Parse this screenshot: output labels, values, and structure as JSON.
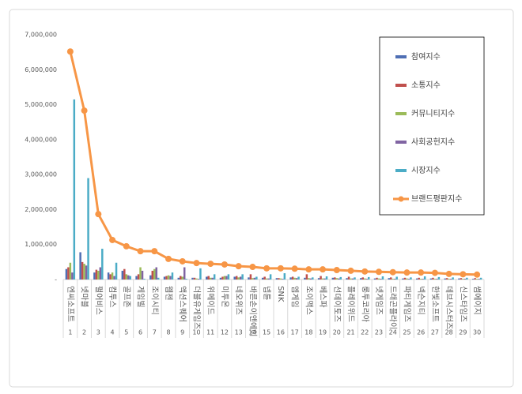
{
  "chart_data": {
    "type": "bar-line",
    "categories": [
      "엔씨소프트",
      "넷마블",
      "펄어비스",
      "컴투스",
      "골프존",
      "게임빌",
      "조이시티",
      "웹젠",
      "액션스퀘어",
      "더블유게임즈",
      "위메이드",
      "미투온",
      "네오위즈",
      "바른손이앤에이",
      "넵튠",
      "SNK",
      "엠게임",
      "조이맥스",
      "베스파",
      "선데이토즈",
      "플레이위드",
      "룽투코리아",
      "넷게임즈",
      "드래곤플라이",
      "파티게임즈",
      "넥슨지티",
      "한빛소프트",
      "데브시스터즈",
      "신스타임즈",
      "썸에이지"
    ],
    "category_numbers": [
      "1",
      "2",
      "3",
      "4",
      "5",
      "6",
      "7",
      "8",
      "9",
      "10",
      "11",
      "12",
      "13",
      "14",
      "15",
      "16",
      "17",
      "18",
      "19",
      "20",
      "21",
      "22",
      "23",
      "24",
      "25",
      "26",
      "27",
      "28",
      "29",
      "30"
    ],
    "ylim": [
      0,
      7000000
    ],
    "yticks": [
      {
        "value": 0,
        "label": "-"
      },
      {
        "value": 1000000,
        "label": "1,000,000"
      },
      {
        "value": 2000000,
        "label": "2,000,000"
      },
      {
        "value": 3000000,
        "label": "3,000,000"
      },
      {
        "value": 4000000,
        "label": "4,000,000"
      },
      {
        "value": 5000000,
        "label": "5,000,000"
      },
      {
        "value": 6000000,
        "label": "6,000,000"
      },
      {
        "value": 7000000,
        "label": "7,000,000"
      }
    ],
    "series": [
      {
        "name": "참여지수",
        "type": "bar",
        "color": "#4f6fb4",
        "values": [
          300000,
          780000,
          200000,
          200000,
          250000,
          100000,
          120000,
          80000,
          50000,
          50000,
          80000,
          50000,
          80000,
          60000,
          50000,
          40000,
          60000,
          50000,
          40000,
          50000,
          40000,
          40000,
          30000,
          40000,
          30000,
          30000,
          30000,
          30000,
          30000,
          20000
        ]
      },
      {
        "name": "소통지수",
        "type": "bar",
        "color": "#c0504d",
        "values": [
          350000,
          500000,
          280000,
          150000,
          300000,
          150000,
          250000,
          100000,
          100000,
          50000,
          100000,
          80000,
          100000,
          150000,
          80000,
          40000,
          80000,
          150000,
          100000,
          60000,
          80000,
          60000,
          50000,
          60000,
          50000,
          50000,
          50000,
          40000,
          40000,
          40000
        ]
      },
      {
        "name": "커뮤니티지수",
        "type": "bar",
        "color": "#9bbb59",
        "values": [
          480000,
          450000,
          250000,
          200000,
          150000,
          350000,
          300000,
          120000,
          80000,
          30000,
          50000,
          100000,
          60000,
          40000,
          30000,
          30000,
          50000,
          40000,
          30000,
          40000,
          30000,
          30000,
          30000,
          20000,
          30000,
          20000,
          20000,
          20000,
          20000,
          20000
        ]
      },
      {
        "name": "사회공헌지수",
        "type": "bar",
        "color": "#8064a2",
        "values": [
          200000,
          400000,
          350000,
          100000,
          120000,
          250000,
          350000,
          100000,
          350000,
          20000,
          50000,
          100000,
          80000,
          50000,
          30000,
          20000,
          40000,
          30000,
          30000,
          30000,
          30000,
          20000,
          20000,
          20000,
          20000,
          20000,
          20000,
          20000,
          20000,
          20000
        ]
      },
      {
        "name": "시장지수",
        "type": "bar",
        "color": "#4bacc6",
        "values": [
          5150000,
          2900000,
          880000,
          480000,
          100000,
          20000,
          50000,
          200000,
          20000,
          320000,
          150000,
          150000,
          150000,
          80000,
          150000,
          180000,
          80000,
          60000,
          90000,
          70000,
          60000,
          70000,
          90000,
          80000,
          60000,
          90000,
          70000,
          60000,
          50000,
          50000
        ]
      },
      {
        "name": "브랜드평판지수",
        "type": "line",
        "color": "#f79646",
        "values": [
          6520000,
          4830000,
          1870000,
          1130000,
          950000,
          810000,
          810000,
          590000,
          520000,
          470000,
          450000,
          430000,
          380000,
          360000,
          320000,
          320000,
          310000,
          290000,
          290000,
          270000,
          250000,
          230000,
          220000,
          210000,
          200000,
          200000,
          190000,
          160000,
          150000,
          140000
        ]
      }
    ]
  }
}
